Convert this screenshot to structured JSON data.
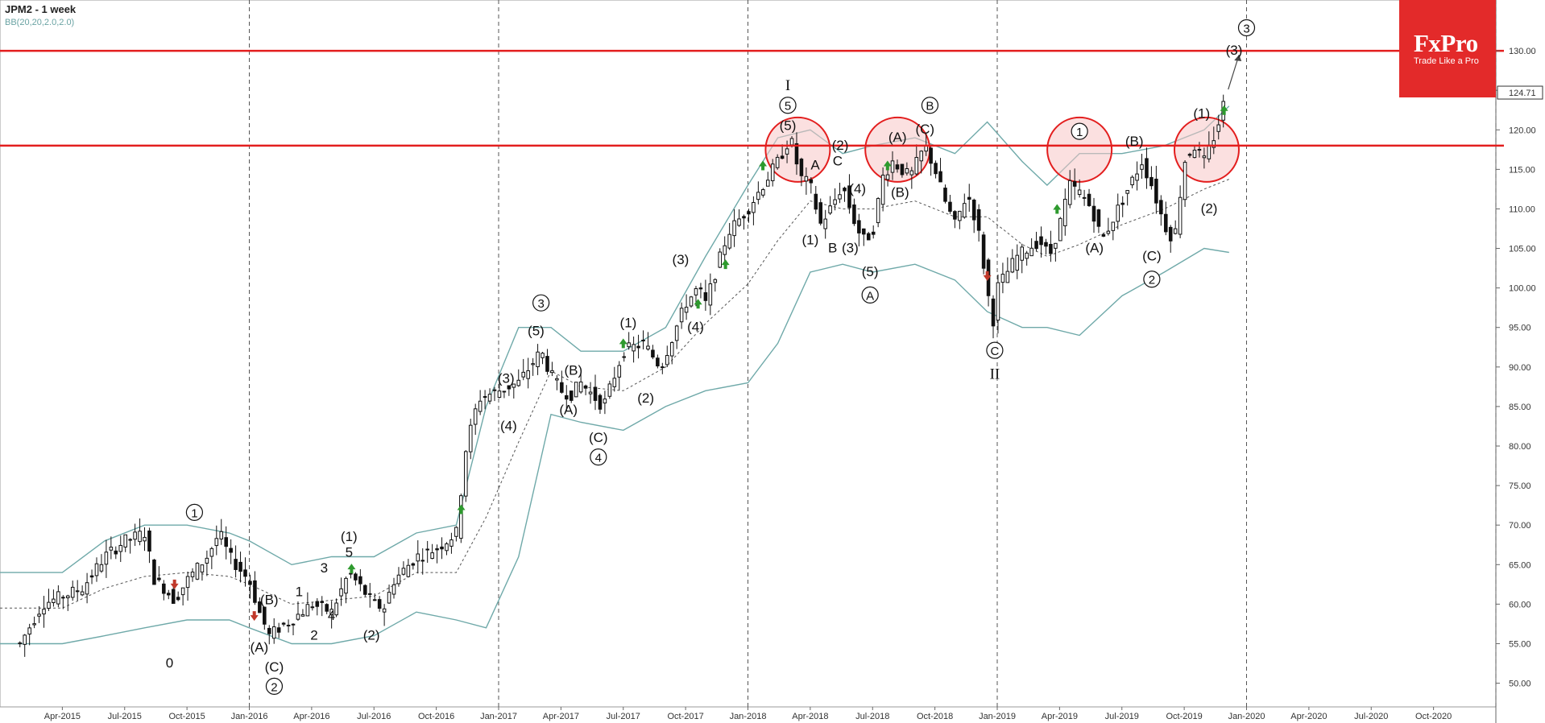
{
  "header": {
    "title": "JPM2 - 1 week",
    "indicator": "BB(20,20,2.0,2.0)"
  },
  "logo": {
    "brand": "FxPro",
    "tagline": "Trade Like a Pro"
  },
  "colors": {
    "bb_band": "#6fa9a9",
    "bb_mid": "#555555",
    "resistance": "#e31e1e",
    "circle_fill": "#f7c6c6",
    "circle_stroke": "#e31e1e",
    "up_arrow": "#2e9a2e",
    "down_arrow": "#c0392b",
    "last_price_box": "#ffffff"
  },
  "chart_data": {
    "type": "candlestick",
    "y_axis": {
      "min": 47,
      "max": 135,
      "ticks": [
        "50.00",
        "55.00",
        "60.00",
        "65.00",
        "70.00",
        "75.00",
        "80.00",
        "85.00",
        "90.00",
        "95.00",
        "100.00",
        "105.00",
        "110.00",
        "115.00",
        "120.00",
        "125.00",
        "130.00"
      ],
      "last_price_label": "124.71"
    },
    "x_axis": {
      "labels": [
        {
          "label": "Apr-2015",
          "t": 2015.25
        },
        {
          "label": "Jul-2015",
          "t": 2015.5
        },
        {
          "label": "Oct-2015",
          "t": 2015.75
        },
        {
          "label": "Jan-2016",
          "t": 2016.0
        },
        {
          "label": "Apr-2016",
          "t": 2016.25
        },
        {
          "label": "Jul-2016",
          "t": 2016.5
        },
        {
          "label": "Oct-2016",
          "t": 2016.75
        },
        {
          "label": "Jan-2017",
          "t": 2017.0
        },
        {
          "label": "Apr-2017",
          "t": 2017.25
        },
        {
          "label": "Jul-2017",
          "t": 2017.5
        },
        {
          "label": "Oct-2017",
          "t": 2017.75
        },
        {
          "label": "Jan-2018",
          "t": 2018.0
        },
        {
          "label": "Apr-2018",
          "t": 2018.25
        },
        {
          "label": "Jul-2018",
          "t": 2018.5
        },
        {
          "label": "Oct-2018",
          "t": 2018.75
        },
        {
          "label": "Jan-2019",
          "t": 2019.0
        },
        {
          "label": "Apr-2019",
          "t": 2019.25
        },
        {
          "label": "Jul-2019",
          "t": 2019.5
        },
        {
          "label": "Oct-2019",
          "t": 2019.75
        },
        {
          "label": "Jan-2020",
          "t": 2020.0
        },
        {
          "label": "Apr-2020",
          "t": 2020.25
        },
        {
          "label": "Jul-2020",
          "t": 2020.5
        },
        {
          "label": "Oct-2020",
          "t": 2020.75
        }
      ],
      "year_separators": [
        2016.0,
        2017.0,
        2018.0,
        2019.0,
        2020.0,
        2021.0
      ]
    },
    "resistance_lines": [
      118.0,
      130.0
    ],
    "price_path": [
      [
        2015.08,
        55
      ],
      [
        2015.17,
        60
      ],
      [
        2015.25,
        61
      ],
      [
        2015.33,
        62
      ],
      [
        2015.42,
        66
      ],
      [
        2015.5,
        68
      ],
      [
        2015.58,
        69
      ],
      [
        2015.62,
        63
      ],
      [
        2015.66,
        62
      ],
      [
        2015.7,
        60.5
      ],
      [
        2015.75,
        63
      ],
      [
        2015.83,
        66
      ],
      [
        2015.88,
        69
      ],
      [
        2015.92,
        66
      ],
      [
        2016.0,
        63
      ],
      [
        2016.04,
        59
      ],
      [
        2016.08,
        56
      ],
      [
        2016.12,
        57
      ],
      [
        2016.17,
        58
      ],
      [
        2016.25,
        60
      ],
      [
        2016.33,
        59
      ],
      [
        2016.4,
        64
      ],
      [
        2016.45,
        62
      ],
      [
        2016.5,
        60
      ],
      [
        2016.54,
        59.5
      ],
      [
        2016.58,
        63
      ],
      [
        2016.67,
        66
      ],
      [
        2016.75,
        67
      ],
      [
        2016.83,
        69
      ],
      [
        2016.87,
        80
      ],
      [
        2016.92,
        86
      ],
      [
        2017.0,
        87
      ],
      [
        2017.08,
        88
      ],
      [
        2017.17,
        92
      ],
      [
        2017.21,
        89
      ],
      [
        2017.25,
        87
      ],
      [
        2017.29,
        86.5
      ],
      [
        2017.33,
        88
      ],
      [
        2017.42,
        85
      ],
      [
        2017.5,
        92
      ],
      [
        2017.58,
        93
      ],
      [
        2017.65,
        90
      ],
      [
        2017.75,
        98
      ],
      [
        2017.8,
        100
      ],
      [
        2017.83,
        98
      ],
      [
        2017.92,
        107
      ],
      [
        2018.0,
        110
      ],
      [
        2018.08,
        114
      ],
      [
        2018.12,
        116
      ],
      [
        2018.17,
        119
      ],
      [
        2018.21,
        114
      ],
      [
        2018.25,
        113
      ],
      [
        2018.29,
        108
      ],
      [
        2018.33,
        110
      ],
      [
        2018.38,
        113
      ],
      [
        2018.42,
        109
      ],
      [
        2018.46,
        106
      ],
      [
        2018.5,
        107
      ],
      [
        2018.54,
        114
      ],
      [
        2018.58,
        116
      ],
      [
        2018.65,
        114
      ],
      [
        2018.71,
        118
      ],
      [
        2018.75,
        115
      ],
      [
        2018.79,
        111
      ],
      [
        2018.83,
        108
      ],
      [
        2018.88,
        112
      ],
      [
        2018.92,
        108
      ],
      [
        2018.96,
        100
      ],
      [
        2018.98,
        95
      ],
      [
        2019.0,
        100
      ],
      [
        2019.08,
        104
      ],
      [
        2019.17,
        106
      ],
      [
        2019.21,
        104
      ],
      [
        2019.25,
        108
      ],
      [
        2019.29,
        113
      ],
      [
        2019.33,
        112
      ],
      [
        2019.38,
        110
      ],
      [
        2019.42,
        106
      ],
      [
        2019.5,
        111
      ],
      [
        2019.58,
        116
      ],
      [
        2019.62,
        113
      ],
      [
        2019.67,
        108
      ],
      [
        2019.71,
        106
      ],
      [
        2019.75,
        116
      ],
      [
        2019.79,
        118
      ],
      [
        2019.83,
        116
      ],
      [
        2019.88,
        120
      ],
      [
        2019.92,
        124.71
      ]
    ],
    "bollinger": {
      "upper": [
        [
          2015.0,
          64
        ],
        [
          2015.25,
          64
        ],
        [
          2015.42,
          68
        ],
        [
          2015.58,
          70
        ],
        [
          2015.75,
          70
        ],
        [
          2015.92,
          69
        ],
        [
          2016.0,
          68
        ],
        [
          2016.17,
          65
        ],
        [
          2016.33,
          66
        ],
        [
          2016.5,
          66
        ],
        [
          2016.67,
          69
        ],
        [
          2016.83,
          70
        ],
        [
          2016.95,
          85
        ],
        [
          2017.08,
          95
        ],
        [
          2017.21,
          95
        ],
        [
          2017.33,
          92
        ],
        [
          2017.5,
          92
        ],
        [
          2017.67,
          95
        ],
        [
          2017.83,
          104
        ],
        [
          2018.0,
          113
        ],
        [
          2018.12,
          119
        ],
        [
          2018.25,
          120
        ],
        [
          2018.38,
          117
        ],
        [
          2018.5,
          118
        ],
        [
          2018.67,
          119
        ],
        [
          2018.83,
          117
        ],
        [
          2018.96,
          121
        ],
        [
          2019.1,
          116
        ],
        [
          2019.2,
          113
        ],
        [
          2019.33,
          117
        ],
        [
          2019.5,
          117
        ],
        [
          2019.67,
          118
        ],
        [
          2019.83,
          120
        ],
        [
          2019.93,
          123
        ]
      ],
      "lower": [
        [
          2015.0,
          55
        ],
        [
          2015.25,
          55
        ],
        [
          2015.42,
          56
        ],
        [
          2015.58,
          57
        ],
        [
          2015.75,
          58
        ],
        [
          2015.92,
          58
        ],
        [
          2016.0,
          57
        ],
        [
          2016.17,
          55
        ],
        [
          2016.33,
          55
        ],
        [
          2016.5,
          56
        ],
        [
          2016.67,
          59
        ],
        [
          2016.83,
          58
        ],
        [
          2016.95,
          57
        ],
        [
          2017.08,
          66
        ],
        [
          2017.21,
          84
        ],
        [
          2017.33,
          83
        ],
        [
          2017.5,
          82
        ],
        [
          2017.67,
          85
        ],
        [
          2017.83,
          87
        ],
        [
          2018.0,
          88
        ],
        [
          2018.12,
          93
        ],
        [
          2018.25,
          102
        ],
        [
          2018.38,
          103
        ],
        [
          2018.5,
          102
        ],
        [
          2018.67,
          103
        ],
        [
          2018.83,
          101
        ],
        [
          2018.96,
          97
        ],
        [
          2019.1,
          95
        ],
        [
          2019.2,
          95
        ],
        [
          2019.33,
          94
        ],
        [
          2019.5,
          99
        ],
        [
          2019.67,
          102
        ],
        [
          2019.83,
          105
        ],
        [
          2019.93,
          104.5
        ]
      ]
    },
    "wave_labels": [
      {
        "text": "0",
        "t": 2015.68,
        "v": 52
      },
      {
        "text": "(A)",
        "t": 2016.04,
        "v": 54
      },
      {
        "text": "(B)",
        "t": 2016.08,
        "v": 60
      },
      {
        "text": "(C)",
        "t": 2016.1,
        "v": 51.5
      },
      {
        "text": "1",
        "t": 2016.2,
        "v": 61
      },
      {
        "text": "2",
        "t": 2016.26,
        "v": 55.5
      },
      {
        "text": "3",
        "t": 2016.3,
        "v": 64
      },
      {
        "text": "4",
        "t": 2016.33,
        "v": 58
      },
      {
        "text": "(1)",
        "t": 2016.4,
        "v": 68
      },
      {
        "text": "5",
        "t": 2016.4,
        "v": 66
      },
      {
        "text": "(2)",
        "t": 2016.49,
        "v": 55.5
      },
      {
        "text": "(3)",
        "t": 2017.03,
        "v": 88
      },
      {
        "text": "(4)",
        "t": 2017.04,
        "v": 82
      },
      {
        "text": "(5)",
        "t": 2017.15,
        "v": 94
      },
      {
        "text": "(A)",
        "t": 2017.28,
        "v": 84
      },
      {
        "text": "(B)",
        "t": 2017.3,
        "v": 89
      },
      {
        "text": "(C)",
        "t": 2017.4,
        "v": 80.5
      },
      {
        "text": "(1)",
        "t": 2017.52,
        "v": 95
      },
      {
        "text": "(2)",
        "t": 2017.59,
        "v": 85.5
      },
      {
        "text": "(3)",
        "t": 2017.73,
        "v": 103
      },
      {
        "text": "(4)",
        "t": 2017.79,
        "v": 94.5
      },
      {
        "text": "(5)",
        "t": 2018.16,
        "v": 120
      },
      {
        "text": "A",
        "t": 2018.27,
        "v": 115
      },
      {
        "text": "(1)",
        "t": 2018.25,
        "v": 105.5
      },
      {
        "text": "(2)",
        "t": 2018.37,
        "v": 117.5
      },
      {
        "text": "C",
        "t": 2018.36,
        "v": 115.5
      },
      {
        "text": "B",
        "t": 2018.34,
        "v": 104.5
      },
      {
        "text": "(3)",
        "t": 2018.41,
        "v": 104.5
      },
      {
        "text": "(4)",
        "t": 2018.44,
        "v": 112
      },
      {
        "text": "(5)",
        "t": 2018.49,
        "v": 101.5
      },
      {
        "text": "(A)",
        "t": 2018.6,
        "v": 118.5
      },
      {
        "text": "(B)",
        "t": 2018.61,
        "v": 111.5
      },
      {
        "text": "(C)",
        "t": 2018.71,
        "v": 119.5
      },
      {
        "text": "(A)",
        "t": 2019.39,
        "v": 104.5
      },
      {
        "text": "(B)",
        "t": 2019.55,
        "v": 118
      },
      {
        "text": "(C)",
        "t": 2019.62,
        "v": 103.5
      },
      {
        "text": "(1)",
        "t": 2019.82,
        "v": 121.5
      },
      {
        "text": "(2)",
        "t": 2019.85,
        "v": 109.5
      },
      {
        "text": "(3)",
        "t": 2019.95,
        "v": 129.5
      }
    ],
    "circled_labels": [
      {
        "text": "1",
        "t": 2015.78,
        "v": 71
      },
      {
        "text": "2",
        "t": 2016.1,
        "v": 49
      },
      {
        "text": "3",
        "t": 2017.17,
        "v": 97.5
      },
      {
        "text": "4",
        "t": 2017.4,
        "v": 78
      },
      {
        "text": "5",
        "t": 2018.16,
        "v": 122.5
      },
      {
        "text": "A",
        "t": 2018.49,
        "v": 98.5
      },
      {
        "text": "B",
        "t": 2018.73,
        "v": 122.5
      },
      {
        "text": "C",
        "t": 2018.99,
        "v": 91.5
      },
      {
        "text": "1",
        "t": 2019.33,
        "v": 119.2
      },
      {
        "text": "2",
        "t": 2019.62,
        "v": 100.5
      },
      {
        "text": "3",
        "t": 2020.0,
        "v": 132.3
      }
    ],
    "roman_labels": [
      {
        "text": "I",
        "t": 2018.16,
        "v": 125
      },
      {
        "text": "II",
        "t": 2018.99,
        "v": 88.5
      }
    ],
    "highlight_circles": [
      {
        "t": 2018.2,
        "v": 117.5
      },
      {
        "t": 2018.6,
        "v": 117.5
      },
      {
        "t": 2019.33,
        "v": 117.5
      },
      {
        "t": 2019.84,
        "v": 117.5
      }
    ],
    "signal_arrows": [
      {
        "dir": "down",
        "t": 2015.7,
        "v": 62.5
      },
      {
        "dir": "down",
        "t": 2016.02,
        "v": 58.5
      },
      {
        "dir": "up",
        "t": 2016.41,
        "v": 64.5
      },
      {
        "dir": "up",
        "t": 2016.85,
        "v": 72
      },
      {
        "dir": "up",
        "t": 2017.5,
        "v": 93
      },
      {
        "dir": "up",
        "t": 2017.8,
        "v": 98
      },
      {
        "dir": "up",
        "t": 2017.91,
        "v": 103
      },
      {
        "dir": "up",
        "t": 2018.06,
        "v": 115.5
      },
      {
        "dir": "up",
        "t": 2018.56,
        "v": 115.5
      },
      {
        "dir": "down",
        "t": 2018.96,
        "v": 101.5
      },
      {
        "dir": "up",
        "t": 2019.24,
        "v": 110
      },
      {
        "dir": "up",
        "t": 2019.91,
        "v": 122.5
      }
    ]
  }
}
